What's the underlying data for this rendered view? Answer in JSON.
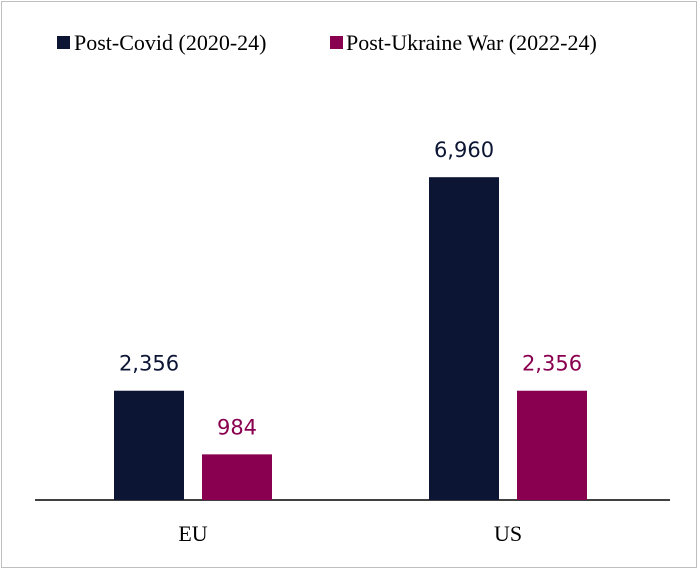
{
  "chart_data": {
    "type": "bar",
    "categories": [
      "EU",
      "US"
    ],
    "series": [
      {
        "name": "Post-Covid (2020-24)",
        "values": [
          2356,
          6960
        ],
        "color": "#0d1535",
        "labels": [
          "2,356",
          "6,960"
        ]
      },
      {
        "name": "Post-Ukraine War (2022-24)",
        "values": [
          984,
          2356
        ],
        "color": "#8a0050",
        "labels": [
          "984",
          "2,356"
        ]
      }
    ],
    "ylim": [
      0,
      8150
    ],
    "grid": false,
    "legend": "top"
  }
}
